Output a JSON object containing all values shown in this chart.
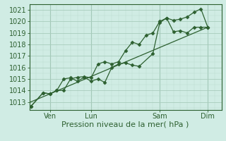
{
  "bg_color": "#d0ece4",
  "grid_color_major": "#a8ccbc",
  "grid_color_minor": "#b8dcd0",
  "line_color": "#2d6030",
  "marker_color": "#2d6030",
  "ylabel_ticks": [
    1013,
    1014,
    1015,
    1016,
    1017,
    1018,
    1019,
    1020,
    1021
  ],
  "ylim": [
    1012.3,
    1021.5
  ],
  "xlabel": "Pression niveau de la mer( hPa )",
  "xtick_labels": [
    "Ven",
    "Lun",
    "Sam",
    "Dim"
  ],
  "xtick_positions": [
    1.5,
    4.5,
    9.5,
    13.0
  ],
  "xlim": [
    0,
    14
  ],
  "series1_x": [
    0.1,
    1.0,
    1.5,
    2.0,
    2.5,
    3.0,
    3.5,
    4.0,
    4.5,
    5.0,
    5.5,
    6.0,
    6.5,
    7.0,
    7.5,
    8.0,
    8.5,
    9.0,
    9.5,
    10.0,
    10.5,
    11.0,
    11.5,
    12.0,
    12.5,
    13.0
  ],
  "series1_y": [
    1012.6,
    1013.8,
    1013.7,
    1014.0,
    1014.0,
    1015.0,
    1015.15,
    1015.2,
    1015.1,
    1016.3,
    1016.5,
    1016.3,
    1016.5,
    1017.45,
    1018.2,
    1018.0,
    1018.8,
    1019.0,
    1020.0,
    1020.3,
    1020.1,
    1020.2,
    1020.4,
    1020.8,
    1021.1,
    1019.5
  ],
  "series2_x": [
    0.1,
    1.0,
    1.5,
    2.0,
    2.5,
    3.0,
    3.5,
    4.0,
    4.5,
    5.0,
    5.5,
    6.0,
    6.5,
    7.0,
    7.5,
    8.0,
    9.0,
    9.5,
    10.0,
    10.5,
    11.0,
    11.5,
    12.0,
    12.5,
    13.0
  ],
  "series2_y": [
    1012.6,
    1013.8,
    1013.7,
    1014.0,
    1015.0,
    1015.1,
    1014.8,
    1015.15,
    1014.8,
    1015.0,
    1014.7,
    1016.0,
    1016.3,
    1016.4,
    1016.2,
    1016.1,
    1017.2,
    1019.9,
    1020.3,
    1019.1,
    1019.2,
    1019.0,
    1019.5,
    1019.5,
    1019.5
  ],
  "trend_x": [
    0.1,
    13.0
  ],
  "trend_y": [
    1013.0,
    1019.5
  ],
  "font_color": "#2d6030",
  "font_size_axis": 8,
  "font_size_tick": 7,
  "marker_size": 2.5,
  "linewidth": 0.9,
  "vline_positions": [
    1.5,
    4.5,
    9.5,
    13.0
  ],
  "vline_color": "#8ab8a8"
}
